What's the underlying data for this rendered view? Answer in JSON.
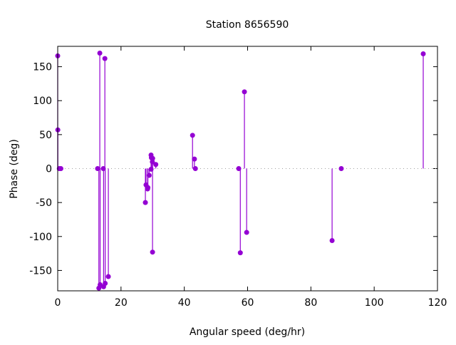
{
  "chart_data": {
    "type": "scatter",
    "style": "impulses with points",
    "title": "Station 8656590",
    "xlabel": "Angular speed (deg/hr)",
    "ylabel": "Phase (deg)",
    "xlim": [
      0,
      120
    ],
    "ylim": [
      -180,
      180
    ],
    "xticks": [
      0,
      20,
      40,
      60,
      80,
      100,
      120
    ],
    "yticks": [
      -150,
      -100,
      -50,
      0,
      50,
      100,
      150
    ],
    "zero_line": true,
    "grid": false,
    "color": "#9400d3",
    "points": [
      {
        "x": 0.0,
        "y": 166
      },
      {
        "x": 0.04,
        "y": 57
      },
      {
        "x": 0.5,
        "y": 0
      },
      {
        "x": 1.0,
        "y": 0
      },
      {
        "x": 12.6,
        "y": 0
      },
      {
        "x": 13.0,
        "y": -176
      },
      {
        "x": 13.3,
        "y": 170
      },
      {
        "x": 13.4,
        "y": -171
      },
      {
        "x": 14.4,
        "y": 0
      },
      {
        "x": 14.5,
        "y": -174
      },
      {
        "x": 14.9,
        "y": 162
      },
      {
        "x": 15.0,
        "y": -169
      },
      {
        "x": 16.0,
        "y": -159
      },
      {
        "x": 27.7,
        "y": -50
      },
      {
        "x": 27.9,
        "y": -24
      },
      {
        "x": 28.4,
        "y": -30
      },
      {
        "x": 28.5,
        "y": -28
      },
      {
        "x": 28.9,
        "y": -10
      },
      {
        "x": 29.5,
        "y": 20
      },
      {
        "x": 29.6,
        "y": 16
      },
      {
        "x": 29.5,
        "y": -1
      },
      {
        "x": 29.96,
        "y": -123
      },
      {
        "x": 30.0,
        "y": 15
      },
      {
        "x": 29.9,
        "y": 10
      },
      {
        "x": 31.0,
        "y": 6
      },
      {
        "x": 42.6,
        "y": 49
      },
      {
        "x": 43.2,
        "y": 14
      },
      {
        "x": 43.5,
        "y": 0
      },
      {
        "x": 57.2,
        "y": 0
      },
      {
        "x": 57.7,
        "y": -124
      },
      {
        "x": 59.0,
        "y": 113
      },
      {
        "x": 59.7,
        "y": -94
      },
      {
        "x": 86.7,
        "y": -106
      },
      {
        "x": 89.6,
        "y": 0
      },
      {
        "x": 115.5,
        "y": 169
      }
    ]
  }
}
